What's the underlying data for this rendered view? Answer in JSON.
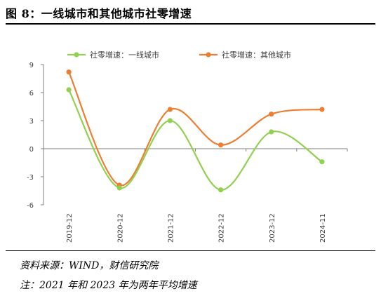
{
  "figure": {
    "title": "图 8：一线城市和其他城市社零增速",
    "source": "资料来源：WIND，财信研究院",
    "note": "注：2021 年和 2023 年为两年平均增速"
  },
  "colors": {
    "tier1": "#92d050",
    "others": "#ed7d31",
    "axis": "#7f7f7f"
  },
  "chart_data": {
    "type": "line",
    "categories": [
      "2019-12",
      "2020-12",
      "2021-12",
      "2022-12",
      "2023-12",
      "2024-11"
    ],
    "series": [
      {
        "name": "社零增速：一线城市",
        "values": [
          6.3,
          -4.2,
          3.0,
          -4.4,
          1.8,
          -1.4
        ]
      },
      {
        "name": "社零增速：其他城市",
        "values": [
          8.2,
          -3.9,
          4.2,
          0.4,
          3.7,
          4.2
        ]
      }
    ],
    "yticks": [
      9,
      6,
      3,
      0,
      -3,
      -6
    ],
    "ylim": [
      -6,
      9
    ],
    "smooth": true,
    "grid": false,
    "legend_position": "top"
  }
}
